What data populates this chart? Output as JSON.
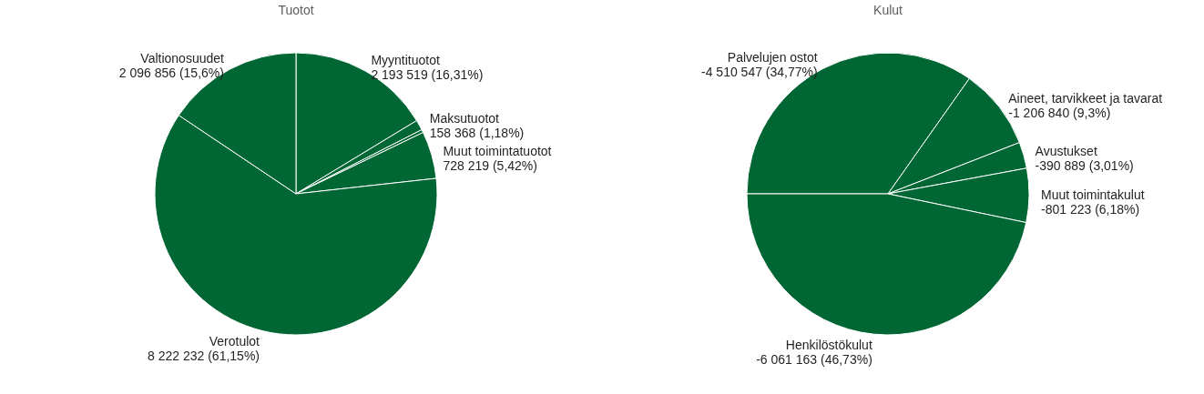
{
  "chart_data": [
    {
      "type": "pie",
      "title": "Tuotot",
      "categories": [
        "Myyntituotot",
        "Maksutuotot",
        null,
        "Muut toimintatuotot",
        "Verotulot",
        "Valtionosuudet"
      ],
      "values": [
        2193519,
        158368,
        45700,
        728219,
        8222232,
        2096856
      ],
      "value_labels": [
        "2 193 519 (16,31%)",
        "158 368 (1,18%)",
        null,
        "728 219 (5,42%)",
        "8 222 232 (61,15%)",
        "2 096 856 (15,6%)"
      ],
      "colors": [
        "#006633",
        "#006633",
        "#006633",
        "#006633",
        "#006633",
        "#006633"
      ]
    },
    {
      "type": "pie",
      "title": "Kulut",
      "categories": [
        "Palvelujen ostot",
        "Aineet, tarvikkeet ja tavarat",
        "Avustukset",
        "Muut toimintakulut",
        "Henkilöstökulut"
      ],
      "values": [
        34.77,
        9.3,
        3.01,
        6.18,
        46.73
      ],
      "value_labels": [
        "-4 510 547 (34,77%)",
        "-1 206 840 (9,3%)",
        "-390 889 (3,01%)",
        "-801 223 (6,18%)",
        "-6 061 163 (46,73%)"
      ],
      "colors": [
        "#006633",
        "#006633",
        "#006633",
        "#006633",
        "#006633"
      ]
    }
  ]
}
